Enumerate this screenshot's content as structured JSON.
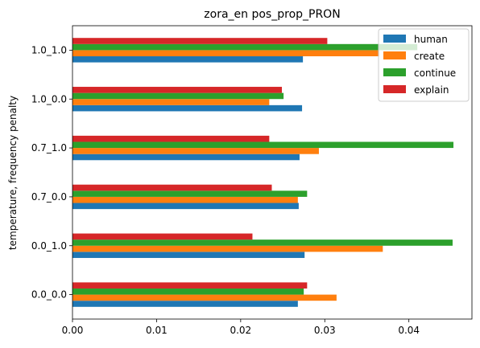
{
  "chart_data": {
    "type": "bar",
    "orientation": "horizontal",
    "title": "zora_en pos_prop_PRON",
    "xlabel": "",
    "ylabel": "temperature, frequency penalty",
    "xlim": [
      0,
      0.0475
    ],
    "x_ticks": [
      "0.00",
      "0.01",
      "0.02",
      "0.03",
      "0.04"
    ],
    "x_tick_values": [
      0,
      0.01,
      0.02,
      0.03,
      0.04
    ],
    "categories": [
      "0.0_0.0",
      "0.0_1.0",
      "0.7_0.0",
      "0.7_1.0",
      "1.0_0.0",
      "1.0_1.0"
    ],
    "series": [
      {
        "name": "human",
        "color": "#1f77b4",
        "values": [
          0.0268,
          0.0276,
          0.0269,
          0.027,
          0.0273,
          0.0274
        ]
      },
      {
        "name": "create",
        "color": "#ff7f0e",
        "values": [
          0.0314,
          0.0369,
          0.0268,
          0.0293,
          0.0234,
          0.0365
        ]
      },
      {
        "name": "continue",
        "color": "#2ca02c",
        "values": [
          0.0275,
          0.0452,
          0.0279,
          0.0453,
          0.0251,
          0.041
        ]
      },
      {
        "name": "explain",
        "color": "#d62728",
        "values": [
          0.0279,
          0.0214,
          0.0237,
          0.0234,
          0.0249,
          0.0303
        ]
      }
    ],
    "legend": {
      "position": "top-right"
    },
    "grid": false
  }
}
